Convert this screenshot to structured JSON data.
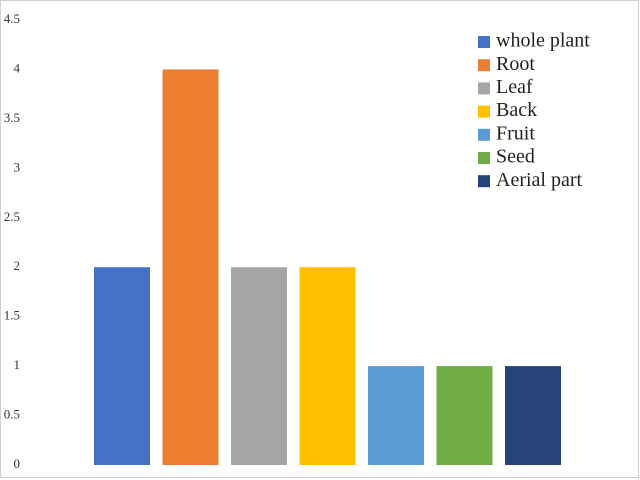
{
  "chart_data": {
    "type": "bar",
    "series": [
      {
        "name": "whole plant",
        "color": "#4472c4",
        "values": [
          2
        ]
      },
      {
        "name": "Root",
        "color": "#ed7d31",
        "values": [
          4
        ]
      },
      {
        "name": "Leaf",
        "color": "#a5a5a5",
        "values": [
          2
        ]
      },
      {
        "name": "Back",
        "color": "#ffc000",
        "values": [
          2
        ]
      },
      {
        "name": "Fruit",
        "color": "#5b9bd5",
        "values": [
          1
        ]
      },
      {
        "name": "Seed",
        "color": "#70ad47",
        "values": [
          1
        ]
      },
      {
        "name": "Aerial part",
        "color": "#264478",
        "values": [
          1
        ]
      }
    ],
    "ylim": [
      0,
      4.5
    ],
    "yticks": [
      0,
      0.5,
      1,
      1.5,
      2,
      2.5,
      3,
      3.5,
      4,
      4.5
    ],
    "grid": false,
    "legend": "top-right"
  }
}
